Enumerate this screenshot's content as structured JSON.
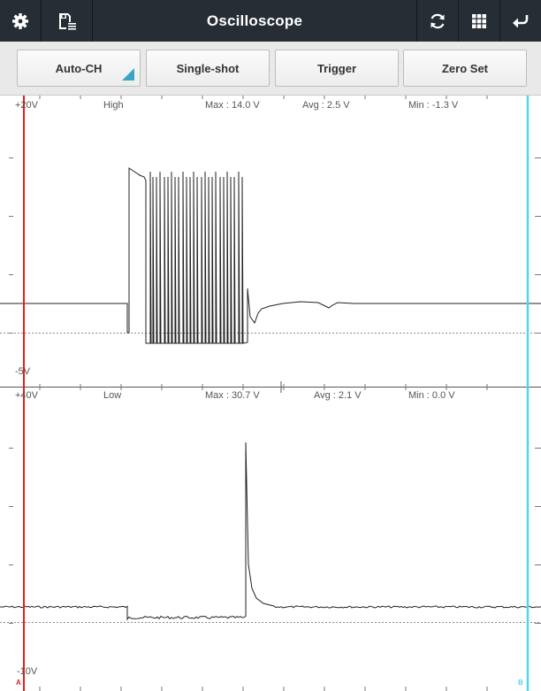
{
  "app": {
    "title": "Oscilloscope"
  },
  "titlebar": {
    "left_icons": [
      "gear-icon",
      "save-list-icon"
    ],
    "right_icons": [
      "refresh-icon",
      "grid-icon",
      "back-icon"
    ]
  },
  "buttons": {
    "auto_ch": "Auto-CH",
    "single_shot": "Single-shot",
    "trigger": "Trigger",
    "zero_set": "Zero Set"
  },
  "channel_high": {
    "top_scale": "+20V",
    "bottom_scale": "-5V",
    "name": "High",
    "max": "Max : 14.0 V",
    "avg": "Avg : 2.5 V",
    "min": "Min : -1.3 V"
  },
  "channel_low": {
    "top_scale": "+40V",
    "bottom_scale": "-10V",
    "name": "Low",
    "max": "Max : 30.7 V",
    "avg": "Avg : 2.1 V",
    "min": "Min : 0.0 V"
  },
  "cursors": {
    "a_label": "A",
    "b_label": "B",
    "a_color": "#e0201c",
    "b_color": "#4fd6e8"
  },
  "colors": {
    "titlebar": "#262d35",
    "trace": "#222222",
    "zero_line": "#8a8a8a",
    "accent": "#3ba3c9"
  }
}
